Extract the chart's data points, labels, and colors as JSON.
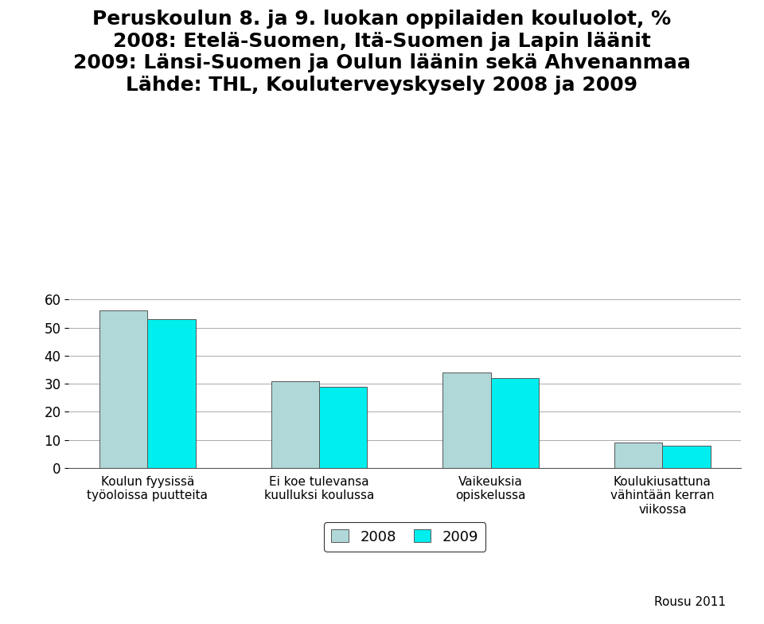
{
  "title_line1": "Peruskoulun 8. ja 9. luokan oppilaiden kouluolot, %",
  "title_line2": "2008: Etelä-Suomen, Itä-Suomen ja Lapin läänit",
  "title_line3": "2009: Länsi-Suomen ja Oulun läänin sekä Ahvenanmaa",
  "title_line4": "Lähde: THL, Kouluterveyskysely 2008 ja 2009",
  "categories": [
    "Koulun fyysissä\ntyöoloissa puutteita",
    "Ei koe tulevansa\nkuulluksi koulussa",
    "Vaikeuksia\nopiskelussa",
    "Koulukiusattuna\nvähintään kerran\nviikossa"
  ],
  "values_2008": [
    56,
    31,
    34,
    9
  ],
  "values_2009": [
    53,
    29,
    32,
    8
  ],
  "color_2008": "#b0d8d8",
  "color_2009": "#00eeee",
  "ylim": [
    0,
    60
  ],
  "yticks": [
    0,
    10,
    20,
    30,
    40,
    50,
    60
  ],
  "legend_labels": [
    "2008",
    "2009"
  ],
  "bar_width": 0.28,
  "footer": "Rousu 2011",
  "background_color": "#ffffff",
  "title_fontsize": 18,
  "tick_fontsize": 12,
  "xlabel_fontsize": 11,
  "legend_fontsize": 13
}
